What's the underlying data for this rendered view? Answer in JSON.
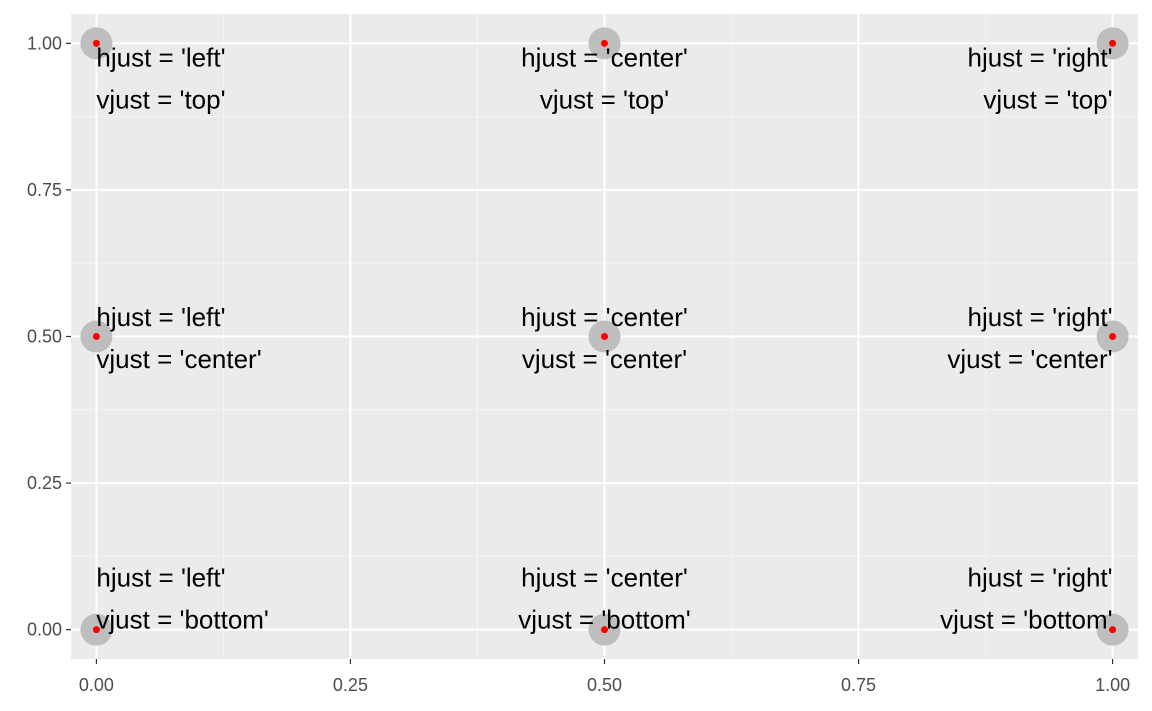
{
  "chart_data": {
    "type": "scatter",
    "title": "",
    "xlabel": "",
    "ylabel": "",
    "xlim": [
      -0.025,
      1.025
    ],
    "ylim": [
      -0.05,
      1.05
    ],
    "grid": true,
    "x_ticks": [
      "0.00",
      "0.25",
      "0.50",
      "0.75",
      "1.00"
    ],
    "y_ticks": [
      "0.00",
      "0.25",
      "0.50",
      "0.75",
      "1.00"
    ],
    "x_tick_values": [
      0,
      0.25,
      0.5,
      0.75,
      1
    ],
    "y_tick_values": [
      0,
      0.25,
      0.5,
      0.75,
      1
    ],
    "points": [
      {
        "x": 0,
        "y": 1,
        "hjust": "left",
        "vjust": "top",
        "line1": "hjust = 'left'",
        "line2": "vjust = 'top'"
      },
      {
        "x": 0.5,
        "y": 1,
        "hjust": "center",
        "vjust": "top",
        "line1": "hjust = 'center'",
        "line2": "vjust = 'top'"
      },
      {
        "x": 1,
        "y": 1,
        "hjust": "right",
        "vjust": "top",
        "line1": "hjust = 'right'",
        "line2": "vjust = 'top'"
      },
      {
        "x": 0,
        "y": 0.5,
        "hjust": "left",
        "vjust": "center",
        "line1": "hjust = 'left'",
        "line2": "vjust = 'center'"
      },
      {
        "x": 0.5,
        "y": 0.5,
        "hjust": "center",
        "vjust": "center",
        "line1": "hjust = 'center'",
        "line2": "vjust = 'center'"
      },
      {
        "x": 1,
        "y": 0.5,
        "hjust": "right",
        "vjust": "center",
        "line1": "hjust = 'right'",
        "line2": "vjust = 'center'"
      },
      {
        "x": 0,
        "y": 0,
        "hjust": "left",
        "vjust": "bottom",
        "line1": "hjust = 'left'",
        "line2": "vjust = 'bottom'"
      },
      {
        "x": 0.5,
        "y": 0,
        "hjust": "center",
        "vjust": "bottom",
        "line1": "hjust = 'center'",
        "line2": "vjust = 'bottom'"
      },
      {
        "x": 1,
        "y": 0,
        "hjust": "right",
        "vjust": "bottom",
        "line1": "hjust = 'right'",
        "line2": "vjust = 'bottom'"
      }
    ],
    "colors": {
      "panel": "#ebebeb",
      "grid_major": "#ffffff",
      "grid_minor": "#f5f5f5",
      "point_halo": "#bebebe",
      "point_center": "#ff0000",
      "text": "#000000",
      "tick_text": "#4d4d4d",
      "tick_mark": "#333333"
    }
  }
}
